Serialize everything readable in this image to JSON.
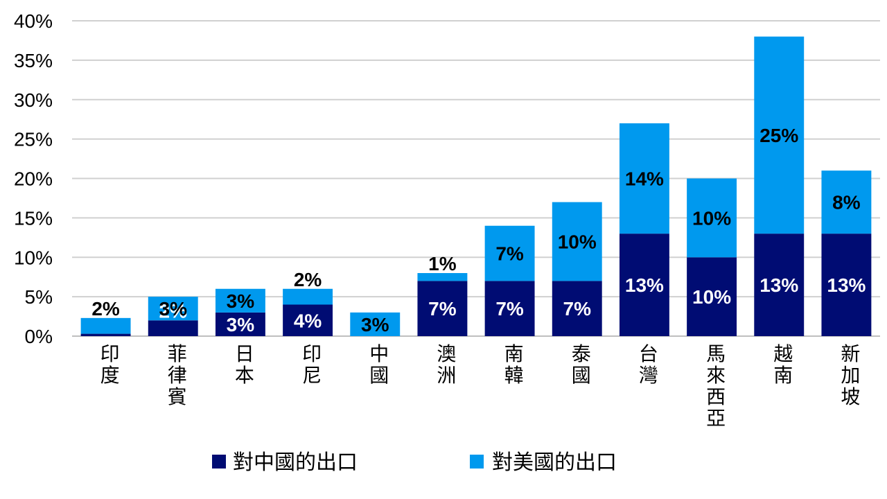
{
  "chart_data": {
    "type": "bar",
    "stacked": true,
    "title": "",
    "xlabel": "",
    "ylabel": "",
    "ylim": [
      0,
      40
    ],
    "yticks": [
      "0%",
      "5%",
      "10%",
      "15%",
      "20%",
      "25%",
      "30%",
      "35%",
      "40%"
    ],
    "grid": true,
    "legend_position": "bottom",
    "categories": [
      "印度",
      "菲律賓",
      "日本",
      "印尼",
      "中國",
      "澳洲",
      "南韓",
      "泰國",
      "台灣",
      "馬來西亞",
      "越南",
      "新加坡"
    ],
    "series": [
      {
        "name": "對中國的出口",
        "color": "#000c73",
        "values": [
          0.3,
          2,
          3,
          4,
          0,
          7,
          7,
          7,
          13,
          10,
          13,
          13
        ],
        "labels": [
          "",
          "2%",
          "3%",
          "4%",
          "",
          "7%",
          "7%",
          "7%",
          "13%",
          "10%",
          "13%",
          "13%"
        ],
        "label_color": "#ffffff"
      },
      {
        "name": "對美國的出口",
        "color": "#0099ee",
        "values": [
          2,
          3,
          3,
          2,
          3,
          1,
          7,
          10,
          14,
          10,
          25,
          8
        ],
        "labels": [
          "2%",
          "3%",
          "3%",
          "2%",
          "3%",
          "1%",
          "7%",
          "10%",
          "14%",
          "10%",
          "25%",
          "8%"
        ],
        "label_color": "#000000"
      }
    ]
  }
}
